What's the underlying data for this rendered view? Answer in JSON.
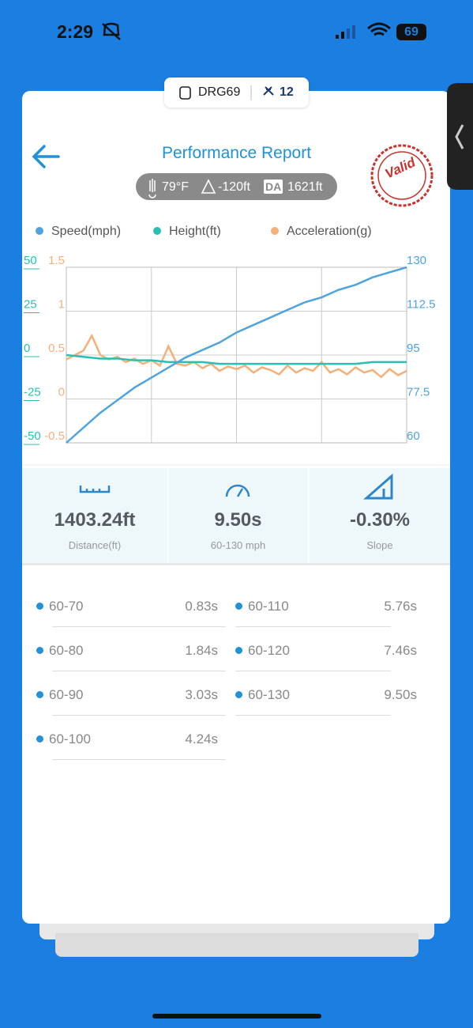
{
  "status": {
    "time": "2:29",
    "battery": "69"
  },
  "device": {
    "name": "DRG69",
    "count": "12"
  },
  "header": {
    "title": "Performance Report"
  },
  "conditions": {
    "temperature": "79°F",
    "altitude": "-120ft",
    "da_label": "DA",
    "da": "1621ft"
  },
  "stamp": "Valid",
  "chart_data": {
    "type": "line",
    "series": [
      {
        "name": "Speed(mph)",
        "color": "#4fa3e0",
        "axis": "y2",
        "values": [
          60,
          66,
          72,
          77,
          82,
          86,
          90,
          94,
          97,
          100,
          104,
          107,
          110,
          113,
          116,
          118,
          121,
          123,
          126,
          128,
          130
        ]
      },
      {
        "name": "Height(ft)",
        "color": "#2bbfb3",
        "axis": "y",
        "values": [
          0,
          -1,
          -2,
          -2,
          -3,
          -3,
          -4,
          -4,
          -4,
          -5,
          -5,
          -5,
          -5,
          -5,
          -5,
          -5,
          -5,
          -5,
          -4,
          -4,
          -4
        ]
      },
      {
        "name": "Acceleration(g)",
        "color": "#f5b07a",
        "axis": "y3",
        "values": [
          0.45,
          0.5,
          0.55,
          0.72,
          0.5,
          0.45,
          0.48,
          0.42,
          0.46,
          0.4,
          0.44,
          0.38,
          0.6,
          0.4,
          0.38,
          0.42,
          0.35,
          0.4,
          0.32,
          0.37,
          0.34,
          0.38,
          0.3,
          0.36,
          0.33,
          0.28,
          0.38,
          0.3,
          0.35,
          0.32,
          0.42,
          0.3,
          0.34,
          0.28,
          0.36,
          0.3,
          0.33,
          0.25,
          0.34,
          0.27,
          0.32
        ]
      }
    ],
    "ylim": [
      -50,
      50
    ],
    "yticks": [
      -50,
      -25,
      0,
      25,
      50
    ],
    "y2lim": [
      60,
      130
    ],
    "y2ticks": [
      60,
      77.5,
      95,
      112.5,
      130
    ],
    "y3lim": [
      -0.5,
      1.5
    ],
    "y3ticks": [
      -0.5,
      0,
      0.5,
      1,
      1.5
    ],
    "grid": true
  },
  "stats": [
    {
      "value": "1403.24ft",
      "label": "Distance(ft)"
    },
    {
      "value": "9.50s",
      "label": "60-130 mph"
    },
    {
      "value": "-0.30%",
      "label": "Slope"
    }
  ],
  "splits": [
    {
      "range": "60-70",
      "time": "0.83s"
    },
    {
      "range": "60-80",
      "time": "1.84s"
    },
    {
      "range": "60-90",
      "time": "3.03s"
    },
    {
      "range": "60-100",
      "time": "4.24s"
    },
    {
      "range": "60-110",
      "time": "5.76s"
    },
    {
      "range": "60-120",
      "time": "7.46s"
    },
    {
      "range": "60-130",
      "time": "9.50s"
    }
  ]
}
